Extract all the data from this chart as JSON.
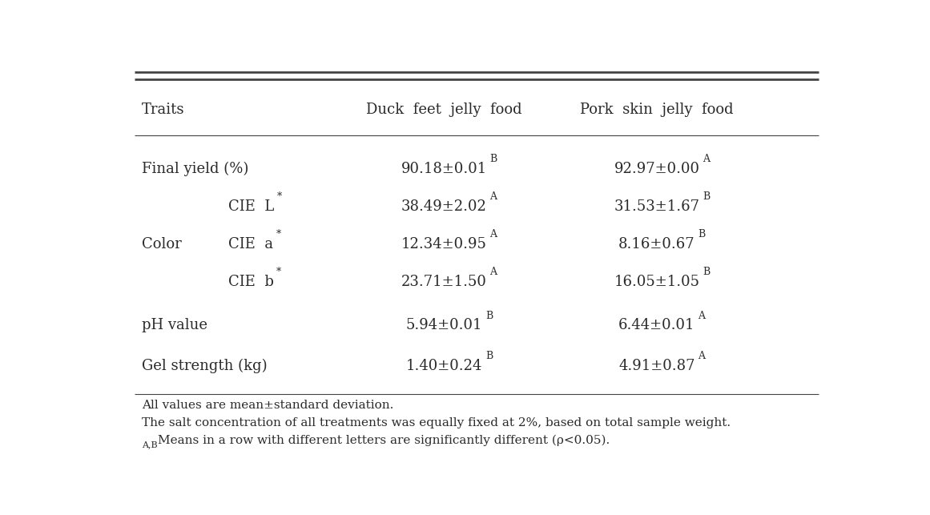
{
  "col_headers": [
    "Traits",
    "Duck  feet  jelly  food",
    "Pork  skin  jelly  food"
  ],
  "rows": [
    {
      "col1_parts": [
        {
          "text": "Final yield (%)",
          "sup": ""
        }
      ],
      "col1_indent": false,
      "col2_main": "90.18±0.01",
      "col2_sup": "B",
      "col3_main": "92.97±0.00",
      "col3_sup": "A"
    },
    {
      "col1_parts": [
        {
          "text": "CIE  L",
          "sup": "*"
        }
      ],
      "col1_indent": true,
      "col2_main": "38.49±2.02",
      "col2_sup": "A",
      "col3_main": "31.53±1.67",
      "col3_sup": "B"
    },
    {
      "col1_parts": [
        {
          "text": "CIE  a",
          "sup": "*"
        }
      ],
      "col1_indent": true,
      "col2_main": "12.34±0.95",
      "col2_sup": "A",
      "col3_main": "8.16±0.67",
      "col3_sup": "B"
    },
    {
      "col1_parts": [
        {
          "text": "CIE  b",
          "sup": "*"
        }
      ],
      "col1_indent": true,
      "col2_main": "23.71±1.50",
      "col2_sup": "A",
      "col3_main": "16.05±1.05",
      "col3_sup": "B"
    },
    {
      "col1_parts": [
        {
          "text": "pH value",
          "sup": ""
        }
      ],
      "col1_indent": false,
      "col2_main": "5.94±0.01",
      "col2_sup": "B",
      "col3_main": "6.44±0.01",
      "col3_sup": "A"
    },
    {
      "col1_parts": [
        {
          "text": "Gel strength (kg)",
          "sup": ""
        }
      ],
      "col1_indent": false,
      "col2_main": "1.40±0.24",
      "col2_sup": "B",
      "col3_main": "4.91±0.87",
      "col3_sup": "A"
    }
  ],
  "color_label": "Color",
  "footnote1": "All values are mean±standard deviation.",
  "footnote2": "The salt concentration of all treatments was equally fixed at 2%, based on total sample weight.",
  "footnote3_sup": "A,B",
  "footnote3_body": "Means in a row with different letters are significantly different (ρ<0.05).",
  "font_size": 13,
  "sup_font_size": 9,
  "footnote_font_size": 11,
  "footnote_sup_font_size": 8,
  "bg_color": "#ffffff",
  "text_color": "#2a2a2a",
  "line_color": "#444444"
}
